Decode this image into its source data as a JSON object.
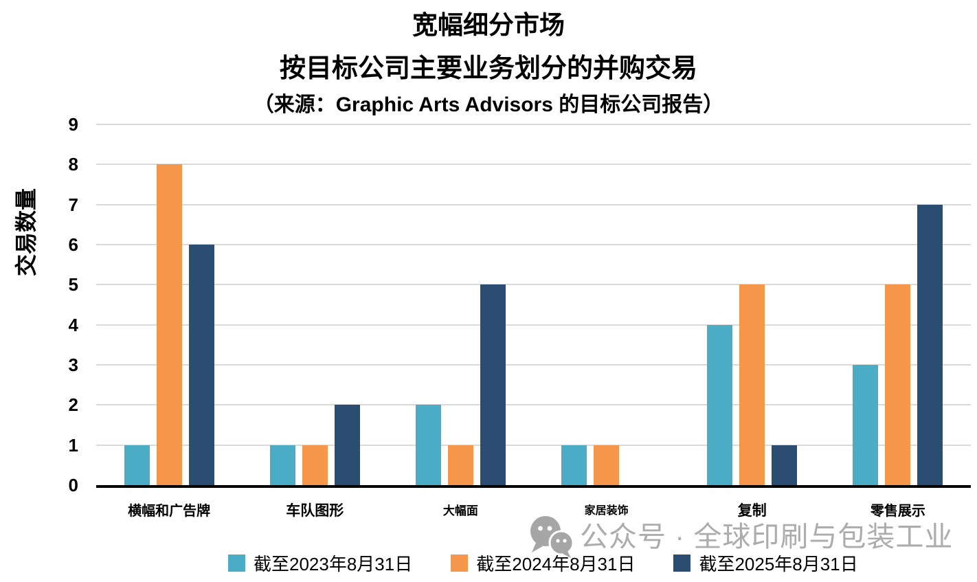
{
  "chart_data": {
    "type": "bar",
    "title": "宽幅细分市场",
    "subtitle": "按目标公司主要业务划分的并购交易",
    "source_note": "（来源：Graphic Arts Advisors 的目标公司报告）",
    "ylabel": "交易数量",
    "xlabel": "",
    "ylim": [
      0,
      9
    ],
    "ytick_interval": 1,
    "grid": true,
    "legend_position": "bottom",
    "categories": [
      "横幅和广告牌",
      "车队图形",
      "大幅面",
      "家居装饰",
      "复制",
      "零售展示"
    ],
    "series": [
      {
        "name": "截至2023年8月31日",
        "color": "#4BACC6",
        "values": [
          1,
          1,
          2,
          1,
          4,
          3
        ]
      },
      {
        "name": "截至2024年8月31日",
        "color": "#F6964A",
        "values": [
          8,
          1,
          1,
          1,
          5,
          5
        ]
      },
      {
        "name": "截至2025年8月31日",
        "color": "#2C4D72",
        "values": [
          6,
          2,
          5,
          0,
          1,
          7
        ]
      }
    ]
  },
  "watermark": {
    "icon": "wechat-icon",
    "text": "公众号 · 全球印刷与包装工业",
    "color": "#ACACAC"
  },
  "colors": {
    "background": "#FFFFFF",
    "gridline": "#D9D9D9",
    "axis_line": "#000000"
  }
}
